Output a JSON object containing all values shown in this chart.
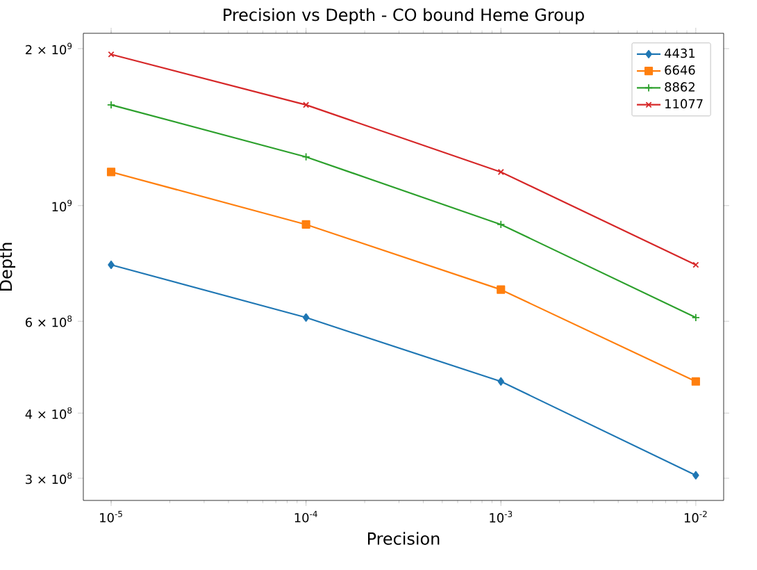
{
  "chart_data": {
    "type": "line",
    "title": "Precision vs Depth - CO bound Heme Group",
    "xlabel": "Precision",
    "ylabel": "Depth",
    "x": [
      1e-05,
      0.0001,
      0.001,
      0.01
    ],
    "series": [
      {
        "name": "4431",
        "color": "#1f77b4",
        "marker": "diamond",
        "values": [
          770000000,
          610000000,
          460000000,
          304000000
        ]
      },
      {
        "name": "6646",
        "color": "#ff7f0e",
        "marker": "square",
        "values": [
          1160000000,
          920000000,
          690000000,
          460000000
        ]
      },
      {
        "name": "8862",
        "color": "#2ca02c",
        "marker": "plus",
        "values": [
          1560000000,
          1240000000,
          920000000,
          610000000
        ]
      },
      {
        "name": "11077",
        "color": "#d62728",
        "marker": "cross",
        "values": [
          1950000000,
          1560000000,
          1160000000,
          770000000
        ]
      }
    ],
    "log": "xy",
    "xlim": [
      7.2e-06,
      0.0139
    ],
    "ylim": [
      272000000,
      2140000000
    ],
    "xticks": [
      {
        "value": 1e-05,
        "label": "10$^{-5}$"
      },
      {
        "value": 0.0001,
        "label": "10$^{-4}$"
      },
      {
        "value": 0.001,
        "label": "10$^{-3}$"
      },
      {
        "value": 0.01,
        "label": "10$^{-2}$"
      }
    ],
    "yticks": [
      {
        "value": 300000000,
        "label": "3 × 10$^{8}$"
      },
      {
        "value": 400000000,
        "label": "4 × 10$^{8}$"
      },
      {
        "value": 600000000,
        "label": "6 × 10$^{8}$"
      },
      {
        "value": 1000000000,
        "label": "10$^{9}$"
      },
      {
        "value": 2000000000,
        "label": "2 × 10$^{9}$"
      }
    ],
    "legend": "top right",
    "line_style": "solid"
  }
}
